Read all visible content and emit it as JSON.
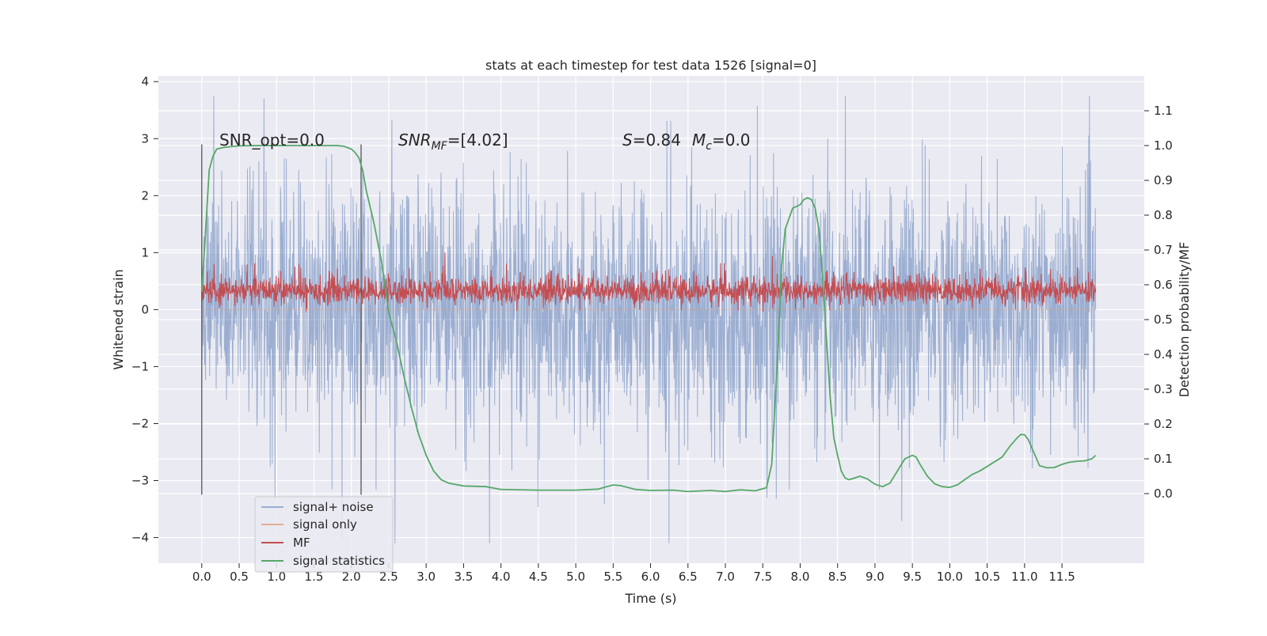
{
  "chart_data": {
    "type": "line",
    "title": "stats at each timestep for test data 1526 [signal=0]",
    "xlabel": "Time (s)",
    "ylabel": "Whitened strain",
    "y2label": "Detection probability/MF",
    "xlim": [
      -0.58,
      12.6
    ],
    "ylim": [
      -4.45,
      4.1
    ],
    "y2lim": [
      -0.2,
      1.2
    ],
    "x_ticks": [
      0.0,
      0.5,
      1.0,
      1.5,
      2.0,
      2.5,
      3.0,
      3.5,
      4.0,
      4.5,
      5.0,
      5.5,
      6.0,
      6.5,
      7.0,
      7.5,
      8.0,
      8.5,
      9.0,
      9.5,
      10.0,
      10.5,
      11.0,
      11.5
    ],
    "x_tick_labels": [
      "0.0",
      "0.5",
      "1.0",
      "1.5",
      "2.0",
      "2.5",
      "3.0",
      "3.5",
      "4.0",
      "4.5",
      "5.0",
      "5.5",
      "6.0",
      "6.5",
      "7.0",
      "7.5",
      "8.0",
      "8.5",
      "9.0",
      "9.5",
      "10.0",
      "10.5",
      "11.0",
      "11.5"
    ],
    "y_ticks": [
      -4,
      -3,
      -2,
      -1,
      0,
      1,
      2,
      3,
      4
    ],
    "y_tick_labels": [
      "−4",
      "−3",
      "−2",
      "−1",
      "0",
      "1",
      "2",
      "3",
      "4"
    ],
    "y2_ticks": [
      0.0,
      0.1,
      0.2,
      0.3,
      0.4,
      0.5,
      0.6,
      0.7,
      0.8,
      0.9,
      1.0,
      1.1
    ],
    "y2_tick_labels": [
      "0.0",
      "0.1",
      "0.2",
      "0.3",
      "0.4",
      "0.5",
      "0.6",
      "0.7",
      "0.8",
      "0.9",
      "1.0",
      "1.1"
    ],
    "grid": true,
    "legend_position": "lower-left",
    "annotations": {
      "snr_opt": "SNR_opt=0.0",
      "snr_mf_base": "SNR",
      "snr_mf_sub": "MF",
      "snr_mf_rest": "=[4.02]",
      "s_label": "S",
      "s_value": "=0.84",
      "mc_base": "M",
      "mc_sub": "c",
      "mc_value": "=0.0"
    },
    "vertical_markers": [
      0.0,
      2.13
    ],
    "series": [
      {
        "name": "signal+ noise",
        "color": "#4c72b0",
        "axis": "left",
        "style": "dense noise",
        "x_range": [
          0.0,
          11.95
        ],
        "core_range": [
          -1.5,
          1.5
        ],
        "spike_extent_approx": [
          -4.1,
          3.75
        ]
      },
      {
        "name": "signal only",
        "color": "#dd8452",
        "axis": "left",
        "values_constant": 0.0
      },
      {
        "name": "MF",
        "color": "#c44e52",
        "axis": "left",
        "style": "dense noise",
        "x_range": [
          0.0,
          11.95
        ],
        "core_range": [
          0.1,
          0.55
        ],
        "spike_extent_approx": [
          -0.05,
          1.0
        ]
      },
      {
        "name": "signal statistics",
        "color": "#55a868",
        "axis": "right",
        "x": [
          0.0,
          0.05,
          0.1,
          0.15,
          0.2,
          0.3,
          0.5,
          0.8,
          1.0,
          1.3,
          1.6,
          1.8,
          1.9,
          2.0,
          2.05,
          2.1,
          2.15,
          2.2,
          2.3,
          2.4,
          2.5,
          2.6,
          2.7,
          2.8,
          2.9,
          3.0,
          3.1,
          3.2,
          3.3,
          3.5,
          3.8,
          4.0,
          4.5,
          5.0,
          5.3,
          5.5,
          5.6,
          5.8,
          6.0,
          6.3,
          6.5,
          6.8,
          7.0,
          7.2,
          7.4,
          7.55,
          7.62,
          7.7,
          7.75,
          7.8,
          7.9,
          8.0,
          8.05,
          8.1,
          8.15,
          8.2,
          8.25,
          8.3,
          8.35,
          8.4,
          8.45,
          8.5,
          8.55,
          8.6,
          8.65,
          8.7,
          8.8,
          8.9,
          9.0,
          9.1,
          9.2,
          9.3,
          9.4,
          9.5,
          9.55,
          9.6,
          9.7,
          9.8,
          9.9,
          10.0,
          10.1,
          10.2,
          10.3,
          10.4,
          10.5,
          10.7,
          10.8,
          10.9,
          10.95,
          11.0,
          11.05,
          11.1,
          11.2,
          11.3,
          11.4,
          11.5,
          11.6,
          11.7,
          11.8,
          11.9,
          11.95
        ],
        "values": [
          0.58,
          0.75,
          0.93,
          0.97,
          0.99,
          0.995,
          0.999,
          1.0,
          1.0,
          1.0,
          1.0,
          1.0,
          0.998,
          0.99,
          0.98,
          0.965,
          0.93,
          0.87,
          0.78,
          0.67,
          0.52,
          0.44,
          0.34,
          0.25,
          0.17,
          0.11,
          0.065,
          0.04,
          0.03,
          0.022,
          0.02,
          0.012,
          0.01,
          0.01,
          0.013,
          0.025,
          0.023,
          0.012,
          0.009,
          0.01,
          0.006,
          0.009,
          0.006,
          0.011,
          0.008,
          0.017,
          0.085,
          0.4,
          0.65,
          0.76,
          0.82,
          0.83,
          0.845,
          0.85,
          0.845,
          0.82,
          0.76,
          0.62,
          0.45,
          0.28,
          0.16,
          0.11,
          0.065,
          0.045,
          0.04,
          0.043,
          0.05,
          0.042,
          0.027,
          0.02,
          0.03,
          0.065,
          0.1,
          0.11,
          0.105,
          0.085,
          0.05,
          0.028,
          0.02,
          0.018,
          0.025,
          0.04,
          0.055,
          0.065,
          0.078,
          0.105,
          0.135,
          0.16,
          0.17,
          0.169,
          0.155,
          0.13,
          0.08,
          0.074,
          0.075,
          0.084,
          0.09,
          0.093,
          0.094,
          0.1,
          0.11
        ]
      }
    ]
  }
}
